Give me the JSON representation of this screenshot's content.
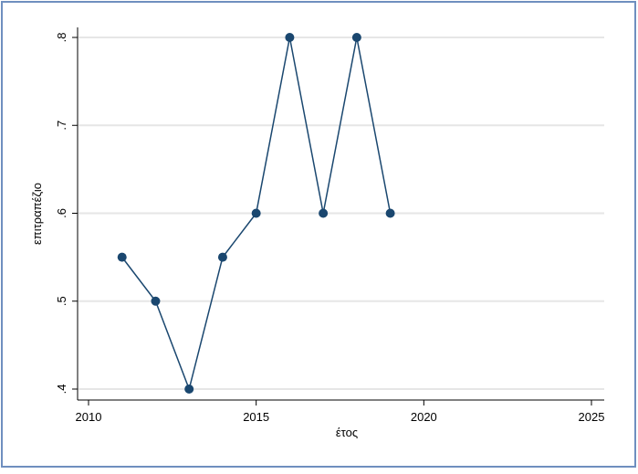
{
  "chart_data": {
    "type": "line",
    "x": [
      2011,
      2012,
      2013,
      2014,
      2015,
      2016,
      2017,
      2018,
      2019
    ],
    "values": [
      0.55,
      0.5,
      0.4,
      0.55,
      0.6,
      0.8,
      0.6,
      0.8,
      0.6
    ],
    "color": "#1a476f",
    "xlabel": "έτος",
    "ylabel": "επιτραπέζιο",
    "xlim": [
      2010,
      2025
    ],
    "xticks": [
      2010,
      2015,
      2020,
      2025
    ],
    "ylim": [
      0.4,
      0.8
    ],
    "yticks": [
      {
        "value": 0.4,
        "label": ".4"
      },
      {
        "value": 0.5,
        "label": ".5"
      },
      {
        "value": 0.6,
        "label": ".6"
      },
      {
        "value": 0.7,
        "label": ".7"
      },
      {
        "value": 0.8,
        "label": ".8"
      }
    ],
    "grid": true
  }
}
